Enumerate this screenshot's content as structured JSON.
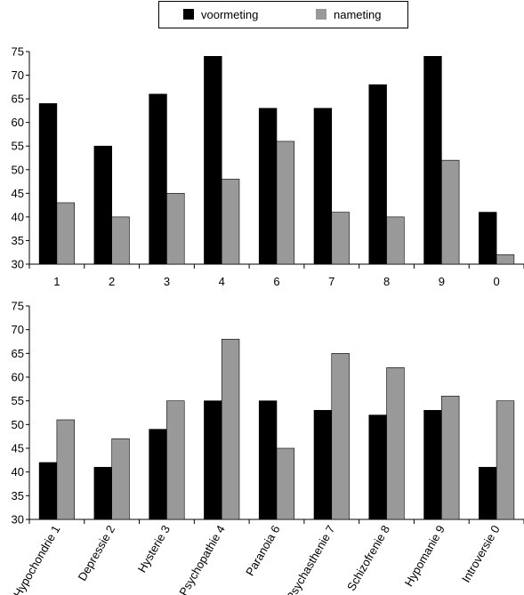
{
  "colors": {
    "voormeting": "#000000",
    "nameting": "#999999"
  },
  "legend": [
    {
      "label": "voormeting",
      "color": "#000000"
    },
    {
      "label": "nameting",
      "color": "#999999"
    }
  ],
  "chart_data": [
    {
      "type": "bar",
      "categories": [
        "1",
        "2",
        "3",
        "4",
        "6",
        "7",
        "8",
        "9",
        "0"
      ],
      "series": [
        {
          "name": "voormeting",
          "values": [
            64,
            55,
            66,
            74,
            63,
            63,
            68,
            74,
            41
          ]
        },
        {
          "name": "nameting",
          "values": [
            43,
            40,
            45,
            48,
            56,
            41,
            40,
            52,
            32
          ]
        }
      ],
      "ylim": [
        30,
        75
      ],
      "yticks": [
        30,
        35,
        40,
        45,
        50,
        55,
        60,
        65,
        70,
        75
      ],
      "legend": "top-center",
      "grid": false
    },
    {
      "type": "bar",
      "categories": [
        "Hypochondrie 1",
        "Depressie 2",
        "Hysterie 3",
        "Psychopathie 4",
        "Paranoia 6",
        "Psychasthenie 7",
        "Schizofrenie 8",
        "Hypomanie 9",
        "Introversie 0"
      ],
      "series": [
        {
          "name": "voormeting",
          "values": [
            42,
            41,
            49,
            55,
            55,
            53,
            52,
            53,
            41
          ]
        },
        {
          "name": "nameting",
          "values": [
            51,
            47,
            55,
            68,
            45,
            65,
            62,
            56,
            55
          ]
        }
      ],
      "ylim": [
        30,
        75
      ],
      "yticks": [
        30,
        35,
        40,
        45,
        50,
        55,
        60,
        65,
        70,
        75
      ],
      "legend": "top-center",
      "grid": false
    }
  ]
}
